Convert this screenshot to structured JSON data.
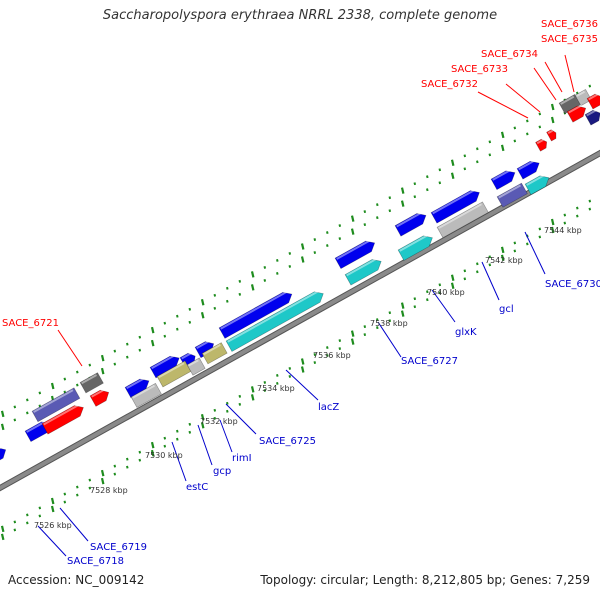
{
  "title": "Saccharopolyspora erythraea NRRL 2338, complete genome",
  "footer": {
    "accession": "Accession: NC_009142",
    "summary": "Topology: circular; Length: 8,212,805 bp; Genes: 7,259"
  },
  "colors": {
    "backbone": "#8a8a8a",
    "tick": "#1e8c1e",
    "label_red": "#ff0000",
    "label_blue": "#0000cc",
    "gene_blue": "#0000ee",
    "gene_cyan": "#1ec8c8",
    "gene_red": "#ff0000",
    "gene_gray": "#bbbbbb",
    "gene_darkgray": "#666666",
    "gene_olive": "#bdb76b",
    "gene_purple": "#5a5ab4",
    "gene_navy": "#1a1a80"
  },
  "kbp_labels": [
    {
      "text": "7526 kbp"
    },
    {
      "text": "7528 kbp"
    },
    {
      "text": "7530 kbp"
    },
    {
      "text": "7532 kbp"
    },
    {
      "text": "7534 kbp"
    },
    {
      "text": "7536 kbp"
    },
    {
      "text": "7538 kbp"
    },
    {
      "text": "7540 kbp"
    },
    {
      "text": "7542 kbp"
    },
    {
      "text": "7544 kbp"
    }
  ],
  "gene_labels": [
    {
      "text": "SACE_6736",
      "color": "label_red"
    },
    {
      "text": "SACE_6735",
      "color": "label_red"
    },
    {
      "text": "SACE_6734",
      "color": "label_red"
    },
    {
      "text": "SACE_6733",
      "color": "label_red"
    },
    {
      "text": "SACE_6732",
      "color": "label_red"
    },
    {
      "text": "SACE_6721",
      "color": "label_red"
    },
    {
      "text": "SACE_6730",
      "color": "label_blue"
    },
    {
      "text": "gcl",
      "color": "label_blue"
    },
    {
      "text": "glxK",
      "color": "label_blue"
    },
    {
      "text": "SACE_6727",
      "color": "label_blue"
    },
    {
      "text": "lacZ",
      "color": "label_blue"
    },
    {
      "text": "SACE_6725",
      "color": "label_blue"
    },
    {
      "text": "rimI",
      "color": "label_blue"
    },
    {
      "text": "gcp",
      "color": "label_blue"
    },
    {
      "text": "estC",
      "color": "label_blue"
    },
    {
      "text": "SACE_6719",
      "color": "label_blue"
    },
    {
      "text": "SACE_6718",
      "color": "label_blue"
    }
  ]
}
